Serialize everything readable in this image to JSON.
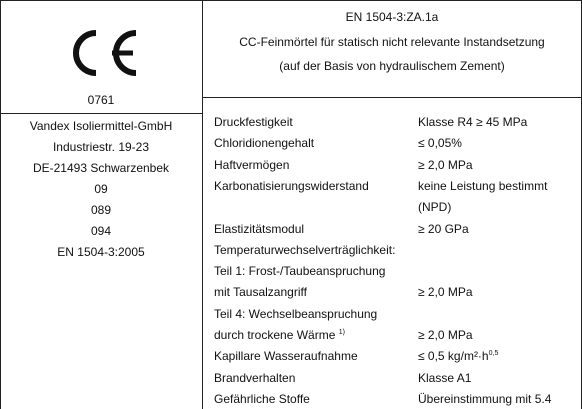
{
  "header": {
    "lines": [
      "EN 1504-3:ZA.1a",
      "CC-Feinmörtel für statisch nicht relevante Instandsetzung",
      "(auf der Basis von hydraulischem Zement)"
    ]
  },
  "left": {
    "notified_body": "0761",
    "lines": [
      "Vandex Isoliermittel-GmbH",
      "Industriestr. 19-23",
      "DE-21493 Schwarzenbek",
      "09",
      "089",
      "094",
      "EN 1504-3:2005"
    ]
  },
  "properties": [
    {
      "name": "Druckfestigkeit",
      "value": "Klasse R4 ≥ 45 MPa"
    },
    {
      "name": "Chloridionengehalt",
      "value": "≤ 0,05%"
    },
    {
      "name": "Haftvermögen",
      "value": "≥ 2,0 MPa"
    },
    {
      "name": "Karbonatisierungswiderstand",
      "value": "keine Leistung bestimmt"
    },
    {
      "value": "(NPD)"
    },
    {
      "name": "Elastizitätsmodul",
      "value": "≥ 20 GPa"
    },
    {
      "name": "Temperaturwechselverträglichkeit:"
    },
    {
      "name": "Teil 1: Frost-/Taubeanspruchung"
    },
    {
      "name": "mit Tausalzangriff",
      "value": "≥ 2,0 MPa"
    },
    {
      "name": "Teil 4: Wechselbeanspruchung"
    },
    {
      "name": "durch trockene Wärme",
      "note": "1)",
      "value": "≥ 2,0 MPa"
    },
    {
      "name": "Kapillare Wasseraufnahme",
      "value": "≤ 0,5 kg/m²·h",
      "value_sup": "0,5"
    },
    {
      "name": "Brandverhalten",
      "value": "Klasse A1"
    },
    {
      "name": "Gefährliche Stoffe",
      "value": "Übereinstimmung mit 5.4"
    }
  ]
}
